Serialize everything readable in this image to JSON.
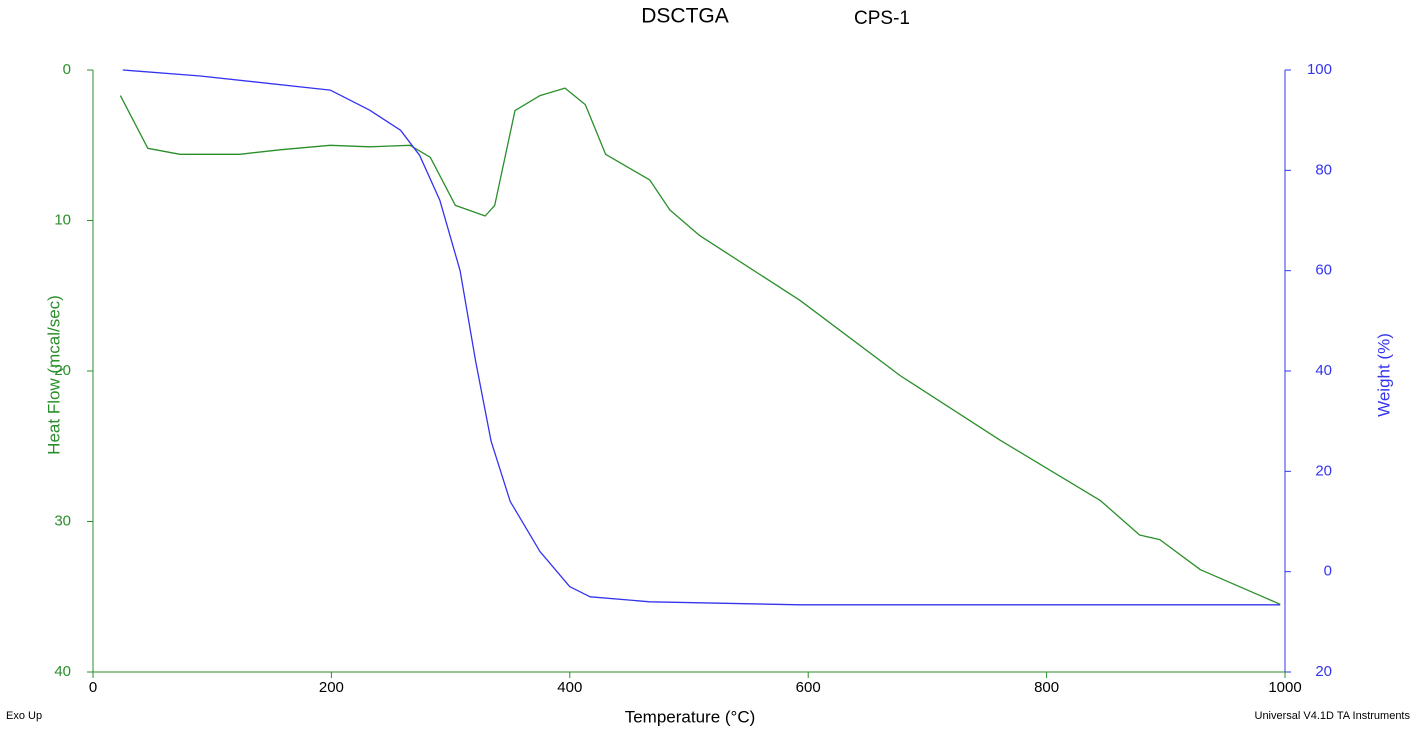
{
  "chart_data": {
    "type": "line",
    "title": "DSCTGA",
    "subtitle": "CPS-1",
    "xlabel": "Temperature (°C)",
    "ylabel": "Heat Flow (mcal/sec)",
    "y2label": "Weight (%)",
    "annotations": [
      "Exo Up",
      "Universal V4.1D TA Instruments"
    ],
    "xlim": [
      0,
      1000
    ],
    "xticks": [
      0,
      200,
      400,
      600,
      800,
      1000
    ],
    "ylim": [
      40,
      0
    ],
    "yticks": [
      0,
      10,
      20,
      30,
      40
    ],
    "y2lim": [
      -20,
      100
    ],
    "y2ticks": [
      100,
      80,
      60,
      40,
      20,
      0,
      {
        "value": -20,
        "label": "20"
      }
    ],
    "grid": false,
    "series": [
      {
        "color": "#2a8f2a",
        "axis": "y",
        "x": [
          23,
          46,
          73,
          123,
          157,
          199,
          232,
          266,
          283,
          304,
          329,
          337,
          354,
          375,
          396,
          413,
          430,
          467,
          484,
          509,
          593,
          677,
          761,
          845,
          878,
          895,
          929,
          996
        ],
        "values": [
          1.7,
          5.2,
          5.6,
          5.6,
          5.3,
          5.0,
          5.1,
          5.0,
          5.8,
          9.0,
          9.7,
          9.0,
          2.7,
          1.7,
          1.2,
          2.3,
          5.6,
          7.3,
          9.3,
          11.0,
          15.3,
          20.3,
          24.6,
          28.6,
          30.9,
          31.2,
          33.2,
          35.5
        ]
      },
      {
        "color": "#3434f0",
        "axis": "y2",
        "x": [
          25,
          90,
          199,
          232,
          258,
          274,
          291,
          308,
          321,
          334,
          350,
          375,
          400,
          417,
          467,
          593,
          996
        ],
        "values": [
          100,
          98.8,
          96,
          92,
          88,
          83,
          74,
          60,
          42,
          26,
          14,
          4,
          -3,
          -5,
          -6,
          -6.6,
          -6.6
        ]
      }
    ]
  }
}
